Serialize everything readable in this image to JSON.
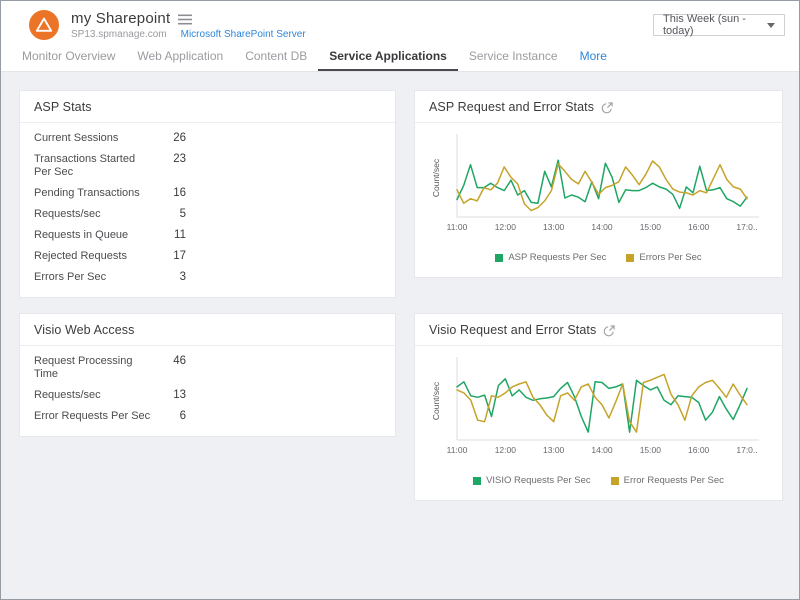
{
  "header": {
    "monitor_name": "my Sharepoint",
    "monitor_host": "SP13.spmanage.com",
    "monitor_type_link": "Microsoft SharePoint Server",
    "time_range_value": "This Week (sun - today)"
  },
  "tabs": [
    {
      "label": "Monitor Overview",
      "active": false
    },
    {
      "label": "Web Application",
      "active": false
    },
    {
      "label": "Content DB",
      "active": false
    },
    {
      "label": "Service Applications",
      "active": true
    },
    {
      "label": "Service Instance",
      "active": false
    },
    {
      "label": "More",
      "active": false
    }
  ],
  "panels": {
    "asp_stats": {
      "title": "ASP Stats",
      "rows": [
        {
          "label": "Current Sessions",
          "value": "26"
        },
        {
          "label": "Transactions Started Per Sec",
          "value": "23"
        },
        {
          "label": "Pending Transactions",
          "value": "16"
        },
        {
          "label": "Requests/sec",
          "value": "5"
        },
        {
          "label": "Requests in Queue",
          "value": "11"
        },
        {
          "label": "Rejected Requests",
          "value": "17"
        },
        {
          "label": "Errors Per Sec",
          "value": "3"
        }
      ]
    },
    "visio_web_access": {
      "title": "Visio Web Access",
      "rows": [
        {
          "label": "Request Processing Time",
          "value": "46"
        },
        {
          "label": "Requests/sec",
          "value": "13"
        },
        {
          "label": "Error Requests Per Sec",
          "value": "6"
        }
      ]
    }
  },
  "chart_data": [
    {
      "type": "line",
      "title": "ASP Request and Error Stats",
      "ylabel": "Count/sec",
      "x_ticks": [
        "11:00",
        "12:00",
        "13:00",
        "14:00",
        "15:00",
        "16:00",
        "17:0.."
      ],
      "ylim": [
        0,
        100
      ],
      "y_axis_note": "no numeric y ticks shown; values estimated on 0-100 scale",
      "grid": false,
      "legend_position": "bottom",
      "series": [
        {
          "name": "ASP Requests Per Sec",
          "color": "#1fa564",
          "values": [
            21,
            40,
            68,
            37,
            37,
            43,
            37,
            33,
            47,
            27,
            33,
            17,
            16,
            59,
            38,
            74,
            23,
            27,
            24,
            18,
            45,
            22,
            70,
            51,
            17,
            34,
            33,
            33,
            37,
            43,
            38,
            35,
            28,
            9,
            38,
            30,
            66,
            33,
            34,
            37,
            22,
            18,
            12,
            24
          ]
        },
        {
          "name": "Errors Per Sec",
          "color": "#c5a32a",
          "values": [
            34,
            16,
            22,
            19,
            37,
            34,
            43,
            65,
            51,
            42,
            15,
            6,
            10,
            19,
            33,
            69,
            59,
            48,
            42,
            59,
            44,
            28,
            37,
            40,
            45,
            65,
            54,
            41,
            55,
            73,
            65,
            48,
            35,
            31,
            30,
            27,
            33,
            30,
            49,
            68,
            48,
            38,
            35,
            22
          ]
        }
      ]
    },
    {
      "type": "line",
      "title": "Visio Request and Error Stats",
      "ylabel": "Count/sec",
      "x_ticks": [
        "11:00",
        "12:00",
        "13:00",
        "14:00",
        "15:00",
        "16:00",
        "17:0.."
      ],
      "ylim": [
        0,
        100
      ],
      "y_axis_note": "no numeric y ticks shown; values estimated on 0-100 scale",
      "grid": false,
      "legend_position": "bottom",
      "series": [
        {
          "name": "VISIO Requests Per Sec",
          "color": "#1fa564",
          "values": [
            69,
            76,
            57,
            55,
            58,
            29,
            71,
            80,
            57,
            65,
            55,
            51,
            53,
            54,
            56,
            67,
            75,
            56,
            29,
            8,
            76,
            75,
            67,
            69,
            73,
            8,
            78,
            71,
            65,
            69,
            51,
            45,
            57,
            56,
            55,
            48,
            24,
            35,
            56,
            39,
            25,
            45,
            67
          ]
        },
        {
          "name": "Error Requests Per Sec",
          "color": "#c5a32a",
          "values": [
            65,
            61,
            51,
            24,
            22,
            57,
            55,
            61,
            69,
            73,
            76,
            55,
            45,
            31,
            22,
            57,
            61,
            51,
            69,
            73,
            55,
            45,
            27,
            49,
            73,
            22,
            8,
            75,
            78,
            82,
            86,
            59,
            45,
            24,
            57,
            69,
            75,
            78,
            67,
            55,
            73,
            58,
            45
          ]
        }
      ]
    }
  ],
  "colors": {
    "brand_orange": "#ec7426",
    "link_blue": "#2e87d8",
    "series_green": "#1fa564",
    "series_yellow": "#c5a32a",
    "page_bg": "#eef0f4"
  }
}
